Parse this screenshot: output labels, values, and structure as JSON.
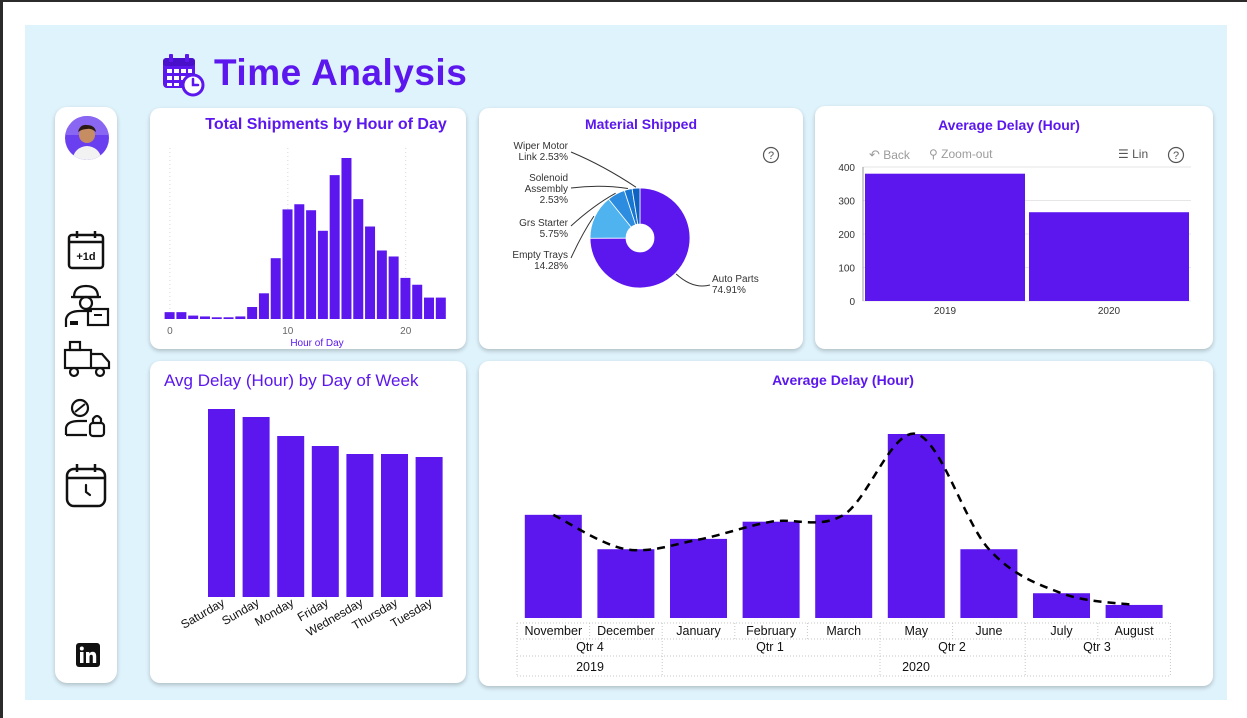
{
  "page": {
    "title": "Time Analysis",
    "accent": "#5b17ee",
    "background": "#dff3fc"
  },
  "sidebar": {
    "avatar": "avatar",
    "icons": [
      "calendar-plus-one-day-icon",
      "delivery-worker-icon",
      "delivery-truck-icon",
      "person-lock-icon",
      "calendar-clock-icon"
    ],
    "footer_icon": "linkedin-icon"
  },
  "hourly_chart": {
    "title": "Total Shipments by Hour of Day",
    "xlabel": "Hour of Day",
    "xticks": [
      "0",
      "10",
      "20"
    ]
  },
  "material_chart": {
    "title": "Material Shipped",
    "help": "?"
  },
  "avg_delay_year_chart": {
    "title": "Average Delay (Hour)",
    "toolbar": {
      "back": "Back",
      "zoom_out": "Zoom-out",
      "lin": "Lin",
      "help": "?"
    },
    "yticks": [
      "0",
      "100",
      "200",
      "300",
      "400"
    ]
  },
  "weekday_chart": {
    "title": "Avg Delay (Hour) by Day of Week"
  },
  "monthly_chart": {
    "title": "Average Delay (Hour)",
    "quarters": [
      {
        "label": "Qtr 4",
        "year": "2019"
      },
      {
        "label": "Qtr 1",
        "year": "2020"
      },
      {
        "label": "Qtr 2",
        "year": "2020"
      },
      {
        "label": "Qtr 3",
        "year": "2020"
      }
    ],
    "years": [
      "2019",
      "2020"
    ]
  },
  "chart_data": [
    {
      "type": "bar",
      "title": "Total Shipments by Hour of Day",
      "xlabel": "Hour of Day",
      "ylabel": "",
      "x": [
        0,
        1,
        2,
        3,
        4,
        5,
        6,
        7,
        8,
        9,
        10,
        11,
        12,
        13,
        14,
        15,
        16,
        17,
        18,
        19,
        20,
        21,
        22,
        23
      ],
      "values": [
        8,
        8,
        4,
        3,
        2,
        2,
        3,
        14,
        30,
        71,
        128,
        134,
        127,
        103,
        168,
        188,
        140,
        108,
        80,
        73,
        48,
        40,
        25,
        25
      ],
      "xticks": [
        0,
        10,
        20
      ],
      "grid": false
    },
    {
      "type": "pie",
      "title": "Material Shipped",
      "labels": [
        "Auto Parts",
        "Empty Trays",
        "Grs Starter",
        "Solenoid Assembly",
        "Wiper Motor Link"
      ],
      "label_text": [
        "Auto Parts 74.91%",
        "Empty Trays 14.28%",
        "Grs Starter 5.75%",
        "Solenoid Assembly 2.53%",
        "Wiper Motor Link 2.53%"
      ],
      "values": [
        74.91,
        14.28,
        5.75,
        2.53,
        2.53
      ],
      "colors": [
        "#5b17ee",
        "#4fb3f0",
        "#2b8ce0",
        "#1776d2",
        "#0f62c0"
      ],
      "style": "donut"
    },
    {
      "type": "bar",
      "title": "Average Delay (Hour)",
      "categories": [
        "2019",
        "2020"
      ],
      "values": [
        380,
        265
      ],
      "ylim": [
        0,
        400
      ],
      "yticks": [
        0,
        100,
        200,
        300,
        400
      ],
      "grid": true
    },
    {
      "type": "bar",
      "title": "Avg Delay (Hour) by Day of Week",
      "categories": [
        "Saturday",
        "Sunday",
        "Monday",
        "Friday",
        "Wednesday",
        "Thursday",
        "Tuesday"
      ],
      "values": [
        188,
        180,
        161,
        151,
        143,
        143,
        140
      ],
      "grid": false
    },
    {
      "type": "bar",
      "title": "Average Delay (Hour)",
      "categories": [
        "November",
        "December",
        "January",
        "February",
        "March",
        "May",
        "June",
        "July",
        "August"
      ],
      "values": [
        300,
        200,
        230,
        280,
        300,
        535,
        200,
        72,
        38
      ],
      "trend_line": [
        300,
        200,
        228,
        280,
        300,
        535,
        200,
        72,
        38
      ],
      "trend_style": "dashed",
      "grid": false
    }
  ]
}
